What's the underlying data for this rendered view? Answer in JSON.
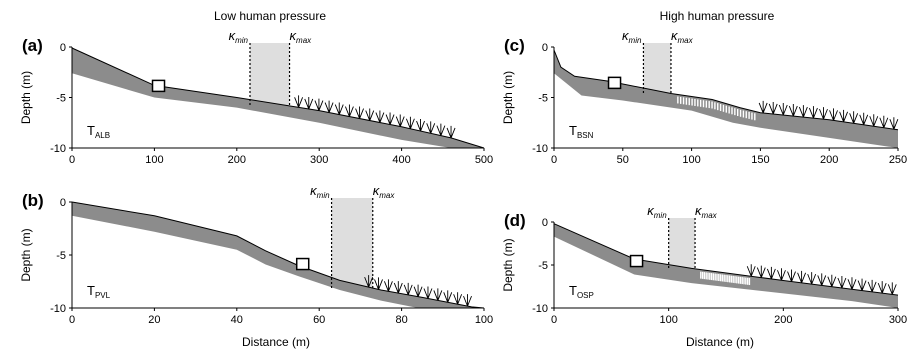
{
  "titles": {
    "left": "Low human pressure",
    "right": "High human pressure"
  },
  "axis": {
    "xlabel": "Distance (m)",
    "ylabel": "Depth (m)"
  },
  "kappa": {
    "symbol": "κ",
    "min": "min",
    "max": "max"
  },
  "colors": {
    "band": "#8c8c8c",
    "shade": "#dedede",
    "line": "#000000"
  },
  "chart_data": [
    {
      "type": "area",
      "panel": "(a)",
      "tname": "T",
      "tsub": "ALB",
      "xlim": [
        0,
        500
      ],
      "ylim": [
        -10,
        0
      ],
      "xticks": [
        0,
        100,
        200,
        300,
        400,
        500
      ],
      "yticks": [
        0,
        -5,
        -10
      ],
      "profile": [
        [
          0,
          -0.1
        ],
        [
          100,
          -3.8
        ],
        [
          200,
          -5.0
        ],
        [
          300,
          -6.3
        ],
        [
          400,
          -7.9
        ],
        [
          460,
          -9.0
        ],
        [
          500,
          -10
        ]
      ],
      "lower": [
        [
          0,
          -2.6
        ],
        [
          100,
          -5.0
        ],
        [
          200,
          -6.0
        ],
        [
          300,
          -7.5
        ],
        [
          400,
          -9.2
        ],
        [
          460,
          -10
        ],
        [
          500,
          -10
        ]
      ],
      "square": [
        105,
        -3.9
      ],
      "kappa_range": [
        216,
        264
      ],
      "seagrass": [
        275,
        460
      ],
      "sparse": []
    },
    {
      "type": "area",
      "panel": "(b)",
      "tname": "T",
      "tsub": "PVL",
      "xlim": [
        0,
        100
      ],
      "ylim": [
        -10,
        0
      ],
      "xticks": [
        0,
        20,
        40,
        60,
        80,
        100
      ],
      "yticks": [
        0,
        -5,
        -10
      ],
      "profile": [
        [
          0,
          0
        ],
        [
          20,
          -1.3
        ],
        [
          40,
          -3.2
        ],
        [
          47,
          -4.6
        ],
        [
          55,
          -6.0
        ],
        [
          65,
          -7.4
        ],
        [
          75,
          -8.3
        ],
        [
          85,
          -9.0
        ],
        [
          97,
          -9.9
        ],
        [
          100,
          -10
        ]
      ],
      "lower": [
        [
          0,
          -1.3
        ],
        [
          20,
          -2.8
        ],
        [
          40,
          -4.5
        ],
        [
          47,
          -5.9
        ],
        [
          55,
          -7.0
        ],
        [
          65,
          -8.3
        ],
        [
          75,
          -9.3
        ],
        [
          84,
          -10
        ],
        [
          100,
          -10
        ]
      ],
      "square": [
        56,
        -5.9
      ],
      "kappa_range": [
        63,
        73
      ],
      "seagrass": [
        72,
        96
      ],
      "sparse": []
    },
    {
      "type": "area",
      "panel": "(c)",
      "tname": "T",
      "tsub": "BSN",
      "xlim": [
        0,
        250
      ],
      "ylim": [
        -10,
        0
      ],
      "xticks": [
        0,
        50,
        100,
        150,
        200,
        250
      ],
      "yticks": [
        0,
        -5,
        -10
      ],
      "profile": [
        [
          0,
          -0.3
        ],
        [
          5,
          -2.0
        ],
        [
          15,
          -2.9
        ],
        [
          40,
          -3.4
        ],
        [
          85,
          -4.6
        ],
        [
          115,
          -5.2
        ],
        [
          135,
          -6.0
        ],
        [
          150,
          -6.5
        ],
        [
          200,
          -7.2
        ],
        [
          250,
          -8.2
        ]
      ],
      "lower": [
        [
          0,
          -2.6
        ],
        [
          20,
          -4.8
        ],
        [
          50,
          -5.3
        ],
        [
          100,
          -6.3
        ],
        [
          130,
          -7.5
        ],
        [
          150,
          -8.0
        ],
        [
          200,
          -9.0
        ],
        [
          250,
          -10
        ]
      ],
      "square": [
        44,
        -3.6
      ],
      "kappa_range": [
        65,
        85
      ],
      "seagrass": [
        152,
        247
      ],
      "sparse": [
        90,
        148
      ]
    },
    {
      "type": "area",
      "panel": "(d)",
      "tname": "T",
      "tsub": "OSP",
      "xlim": [
        0,
        300
      ],
      "ylim": [
        -10,
        0
      ],
      "xticks": [
        0,
        100,
        200,
        300
      ],
      "yticks": [
        0,
        -5,
        -10
      ],
      "profile": [
        [
          0,
          -0.2
        ],
        [
          70,
          -4.3
        ],
        [
          120,
          -5.4
        ],
        [
          200,
          -6.8
        ],
        [
          270,
          -8.0
        ],
        [
          300,
          -8.5
        ]
      ],
      "lower": [
        [
          0,
          -1.7
        ],
        [
          70,
          -6.1
        ],
        [
          120,
          -7.1
        ],
        [
          200,
          -8.3
        ],
        [
          260,
          -9.2
        ],
        [
          300,
          -10
        ]
      ],
      "square": [
        72,
        -4.6
      ],
      "kappa_range": [
        100,
        123
      ],
      "seagrass": [
        172,
        295
      ],
      "sparse": [
        128,
        172
      ]
    }
  ]
}
